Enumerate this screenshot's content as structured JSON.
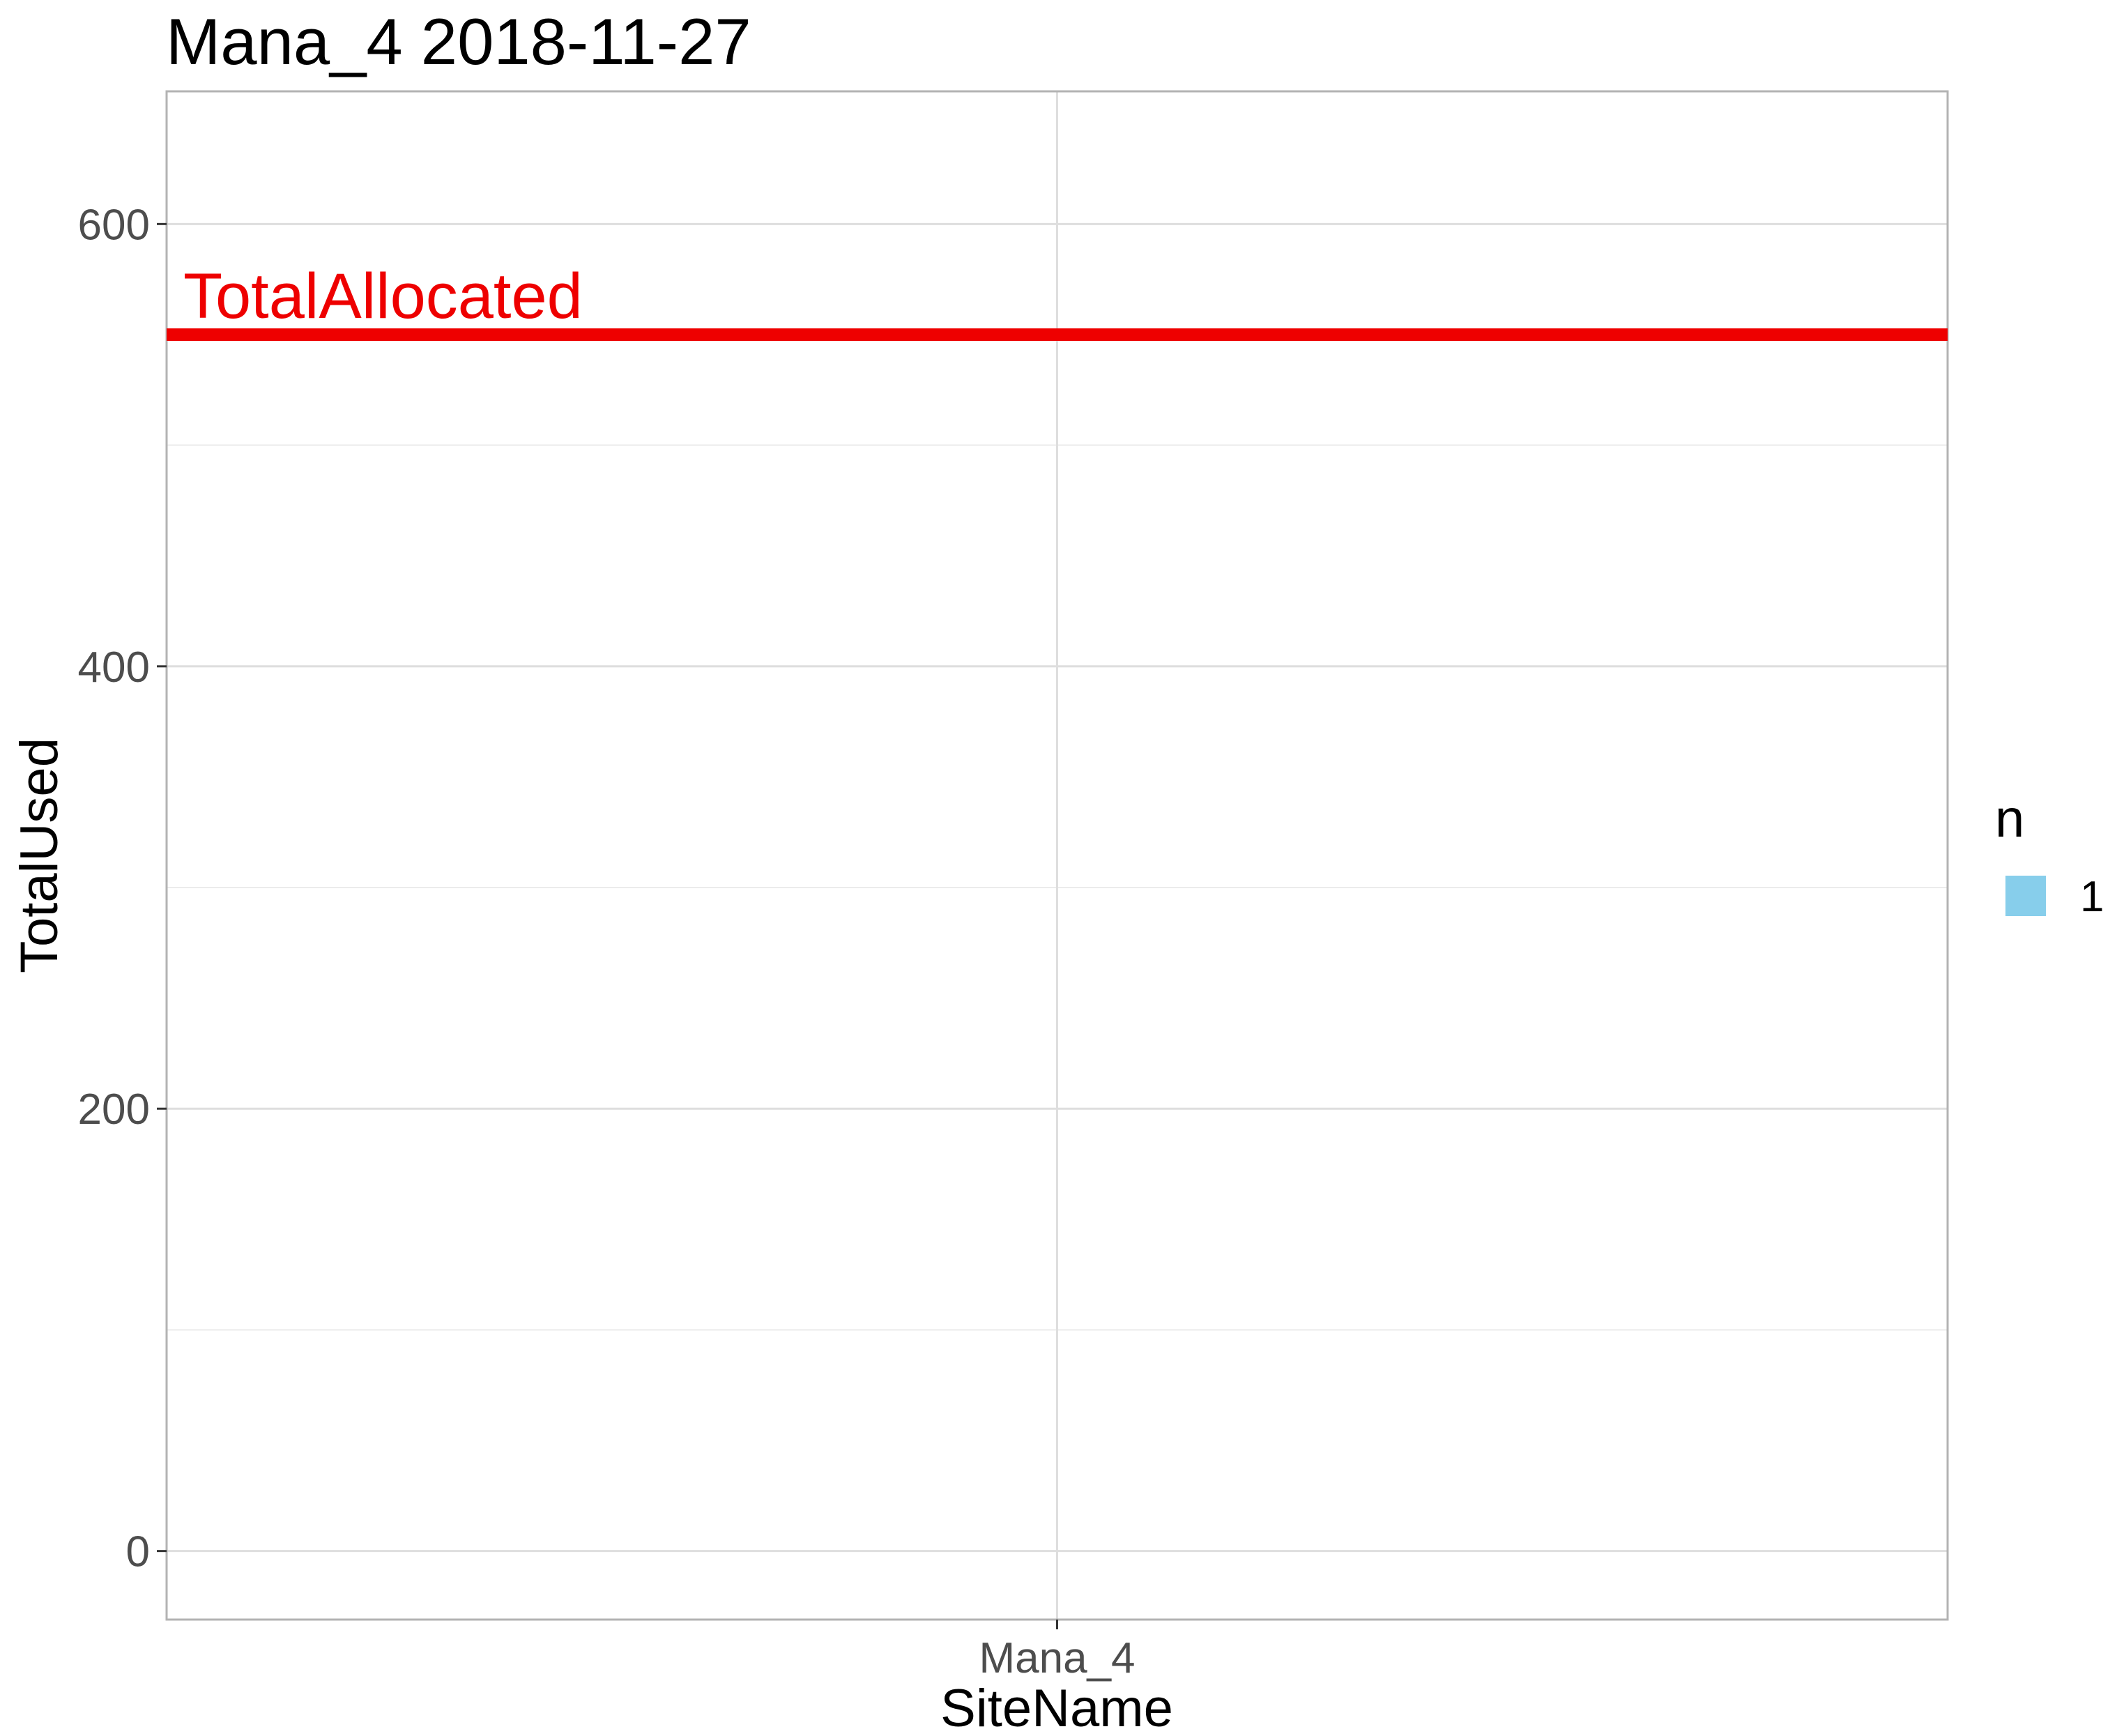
{
  "chart_data": {
    "type": "bar",
    "title": "Mana_4 2018-11-27",
    "xlabel": "SiteName",
    "ylabel": "TotalUsed",
    "categories": [
      "Mana_4"
    ],
    "series": [
      {
        "name": "1",
        "values": [
          0
        ],
        "color": "#87CEEB"
      }
    ],
    "ylim": [
      -31,
      660
    ],
    "yticks": [
      0,
      200,
      400,
      600
    ],
    "ytick_labels": [
      "0",
      "200",
      "400",
      "600"
    ],
    "minor_yticks": [
      100,
      300,
      500
    ],
    "reference_line": {
      "label": "TotalAllocated",
      "y": 550,
      "color": "#EE0000"
    },
    "legend": {
      "title": "n",
      "position": "right",
      "entries": [
        {
          "label": "1",
          "color": "#87CEEB"
        }
      ]
    },
    "grid": true
  }
}
